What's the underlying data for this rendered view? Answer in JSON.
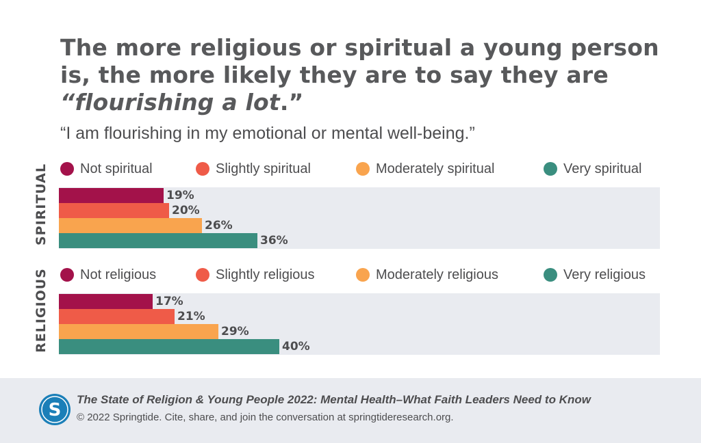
{
  "header": {
    "title_line1": "The more religious or spiritual a young person",
    "title_line2": "is, the more likely they are to say they are",
    "title_em": "“flourishing a lot",
    "title_tail": ".”",
    "subtitle": "“I am flourishing in my emotional or mental well-being.”"
  },
  "colors": {
    "not": "#a3124a",
    "slightly": "#ef5b48",
    "moderately": "#f9a44e",
    "very": "#3a8e7f",
    "panel": "#e9ebf0"
  },
  "chart_data": [
    {
      "type": "bar",
      "orientation": "horizontal",
      "group_label": "SPIRITUAL",
      "categories": [
        "Not spiritual",
        "Slightly spiritual",
        "Moderately spiritual",
        "Very spiritual"
      ],
      "values": [
        19,
        20,
        26,
        36
      ],
      "value_labels": [
        "19%",
        "20%",
        "26%",
        "36%"
      ],
      "unit": "%",
      "xlim": [
        0,
        100
      ],
      "legend": "top"
    },
    {
      "type": "bar",
      "orientation": "horizontal",
      "group_label": "RELIGIOUS",
      "categories": [
        "Not religious",
        "Slightly religious",
        "Moderately religious",
        "Very religious"
      ],
      "values": [
        17,
        21,
        29,
        40
      ],
      "value_labels": [
        "17%",
        "21%",
        "29%",
        "40%"
      ],
      "unit": "%",
      "xlim": [
        0,
        100
      ],
      "legend": "top"
    }
  ],
  "footer": {
    "logo_letter": "S",
    "title": "The State of Religion & Young People 2022: Mental Health–What Faith Leaders Need to Know",
    "copyright": "© 2022 Springtide. Cite, share, and join the conversation at springtideresearch.org."
  }
}
